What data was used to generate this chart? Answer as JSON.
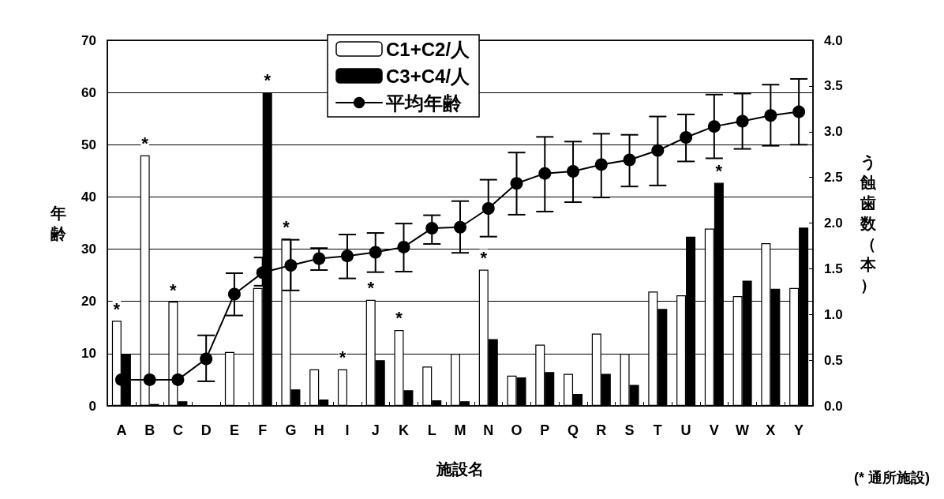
{
  "chart_data": {
    "type": "bar",
    "categories": [
      "A",
      "B",
      "C",
      "D",
      "E",
      "F",
      "G",
      "H",
      "I",
      "J",
      "K",
      "L",
      "M",
      "N",
      "O",
      "P",
      "Q",
      "R",
      "S",
      "T",
      "U",
      "V",
      "W",
      "X",
      "Y"
    ],
    "series": [
      {
        "name": "C1+C2/人",
        "axis": "y2",
        "color": "#ffffff",
        "values": [
          0.93,
          2.74,
          1.14,
          null,
          0.59,
          1.29,
          1.83,
          0.4,
          0.4,
          1.16,
          0.83,
          0.43,
          0.57,
          1.49,
          0.33,
          0.67,
          0.35,
          0.79,
          0.57,
          1.25,
          1.21,
          1.94,
          1.2,
          1.78,
          1.29
        ],
        "value_labels": [
          "*",
          "*",
          "*",
          null,
          null,
          null,
          "*",
          null,
          "*",
          "*",
          "*",
          null,
          null,
          "*",
          null,
          null,
          null,
          null,
          null,
          null,
          null,
          null,
          null,
          null,
          null
        ]
      },
      {
        "name": "C3+C4/人",
        "axis": "y2",
        "color": "#000000",
        "values": [
          0.57,
          0.02,
          0.05,
          null,
          null,
          3.43,
          0.18,
          0.07,
          null,
          0.5,
          0.17,
          0.06,
          0.05,
          0.73,
          0.31,
          0.37,
          0.13,
          0.35,
          0.23,
          1.06,
          1.85,
          2.44,
          1.37,
          1.28,
          1.95
        ],
        "value_labels": [
          null,
          null,
          null,
          null,
          null,
          "*",
          null,
          null,
          null,
          null,
          null,
          null,
          null,
          null,
          null,
          null,
          null,
          null,
          null,
          null,
          null,
          "*",
          null,
          null,
          null
        ]
      },
      {
        "name": "平均年齢",
        "type": "line",
        "color": "#000000",
        "values": [
          5,
          5,
          5,
          9,
          21.4,
          25.5,
          26.9,
          28.2,
          28.7,
          29.4,
          30.4,
          34,
          34.2,
          37.8,
          42.6,
          44.5,
          44.9,
          46.2,
          47.1,
          48.9,
          51.4,
          53.5,
          54.5,
          55.6,
          56.3
        ],
        "errors": [
          null,
          null,
          null,
          [
            4.7,
            13.5
          ],
          [
            17.3,
            25.4
          ],
          [
            23,
            28.4
          ],
          [
            22.1,
            31.8
          ],
          [
            26,
            30.2
          ],
          [
            24.4,
            32.8
          ],
          [
            25.6,
            33.1
          ],
          [
            25.7,
            34.9
          ],
          [
            31,
            36.5
          ],
          [
            29.3,
            39.2
          ],
          [
            32.4,
            43.3
          ],
          [
            36.6,
            48.5
          ],
          [
            37.2,
            51.5
          ],
          [
            39,
            50.6
          ],
          [
            39.9,
            52.1
          ],
          [
            42,
            51.9
          ],
          [
            42.2,
            55.4
          ],
          [
            46.8,
            55.8
          ],
          [
            47.4,
            59.6
          ],
          [
            49.2,
            59.8
          ],
          [
            49.8,
            61.5
          ],
          [
            50,
            62.6
          ]
        ]
      }
    ],
    "xlabel": "施設名",
    "ylabel": "年齢",
    "y2label": "う蝕歯数（本）",
    "ylim": [
      0,
      70
    ],
    "yticks": [
      0,
      10,
      20,
      30,
      40,
      50,
      60,
      70
    ],
    "y2lim": [
      0,
      4
    ],
    "y2ticks": [
      {
        "value": 0,
        "label": "0.0"
      },
      {
        "value": 0.5,
        "label": "0.5"
      },
      {
        "value": 1,
        "label": "1.0"
      },
      {
        "value": 1.5,
        "label": "1.5"
      },
      {
        "value": 2,
        "label": "2.0"
      },
      {
        "value": 2.5,
        "label": "2.5"
      },
      {
        "value": 3,
        "label": "3.0"
      },
      {
        "value": 3.5,
        "label": "3.5"
      },
      {
        "value": 4,
        "label": "4.0"
      }
    ],
    "grid": "y",
    "legend": "top",
    "marker": "circle",
    "line_style": "solid",
    "annotations": [
      "(* 通所施設)"
    ]
  }
}
